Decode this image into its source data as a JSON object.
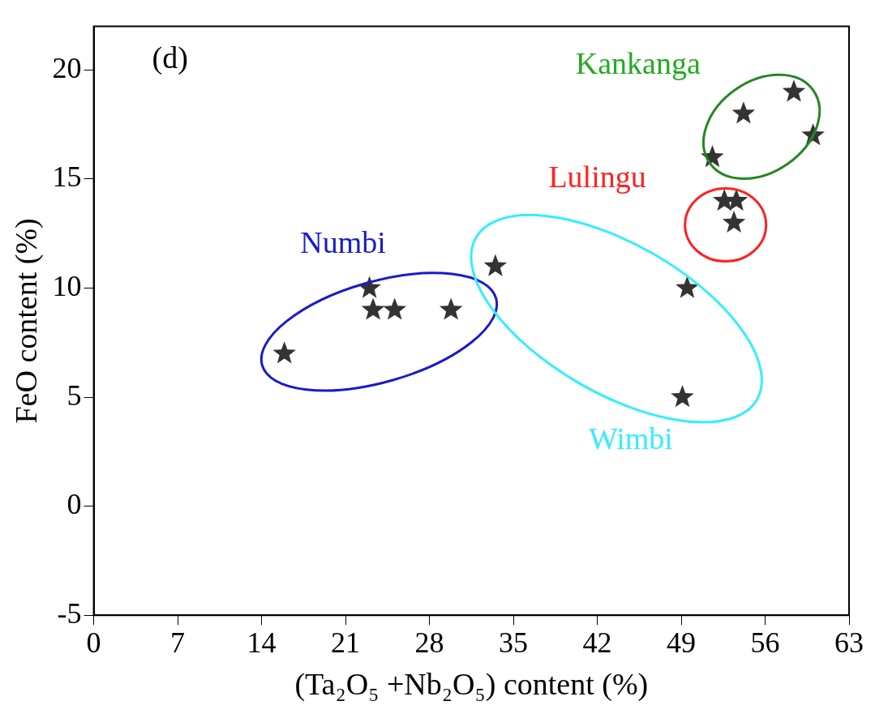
{
  "chart_data": {
    "type": "scatter",
    "xlabel": "(Ta₂O₅ +Nb₂O₅) content (%)",
    "ylabel": "FeO content (%)",
    "x": [
      15.9,
      23.0,
      23.3,
      25.1,
      29.8,
      33.5,
      49.5,
      49.1,
      51.6,
      54.2,
      58.4,
      60.0,
      52.6,
      53.6,
      53.4
    ],
    "series": [
      {
        "color": "#333333",
        "values": [
          7,
          10,
          9,
          9,
          9,
          11,
          10,
          5,
          16,
          18,
          19,
          17,
          14,
          14,
          13
        ]
      }
    ],
    "xlim": [
      0,
      63
    ],
    "xticks": [
      0,
      7,
      14,
      21,
      28,
      35,
      42,
      49,
      56,
      63
    ],
    "ylim": [
      -5,
      22
    ],
    "yticks": [
      -5,
      0,
      5,
      10,
      15,
      20
    ],
    "grid": false,
    "legend": false,
    "marker": "star",
    "annotations": [
      "(d)",
      "Numbi",
      "Kankanga",
      "Lulingu",
      "Wimbi"
    ]
  }
}
